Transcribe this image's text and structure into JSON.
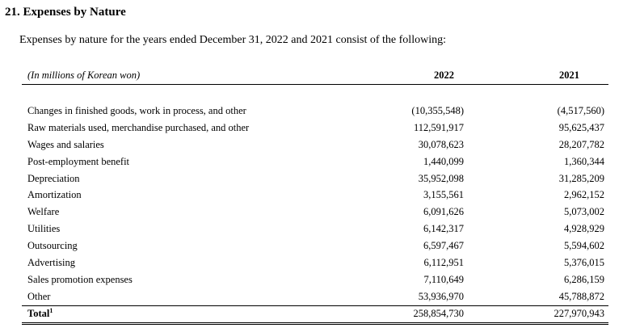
{
  "section": {
    "title": "21. Expenses by Nature",
    "intro": "Expenses by nature for the years ended December 31, 2022 and 2021 consist of the following:"
  },
  "table": {
    "unit_label": "(In millions of Korean won)",
    "col_2022": "2022",
    "col_2021": "2021",
    "rows": [
      {
        "label": "Changes in finished goods, work in process, and other",
        "v2022": "(10,355,548)",
        "v2021": "(4,517,560)"
      },
      {
        "label": "Raw materials used, merchandise purchased, and other",
        "v2022": "112,591,917",
        "v2021": "95,625,437"
      },
      {
        "label": "Wages and salaries",
        "v2022": "30,078,623",
        "v2021": "28,207,782"
      },
      {
        "label": "Post-employment benefit",
        "v2022": "1,440,099",
        "v2021": "1,360,344"
      },
      {
        "label": "Depreciation",
        "v2022": "35,952,098",
        "v2021": "31,285,209"
      },
      {
        "label": "Amortization",
        "v2022": "3,155,561",
        "v2021": "2,962,152"
      },
      {
        "label": "Welfare",
        "v2022": "6,091,626",
        "v2021": "5,073,002"
      },
      {
        "label": "Utilities",
        "v2022": "6,142,317",
        "v2021": "4,928,929"
      },
      {
        "label": "Outsourcing",
        "v2022": "6,597,467",
        "v2021": "5,594,602"
      },
      {
        "label": "Advertising",
        "v2022": "6,112,951",
        "v2021": "5,376,015"
      },
      {
        "label": "Sales promotion expenses",
        "v2022": "7,110,649",
        "v2021": "6,286,159"
      },
      {
        "label": "Other",
        "v2022": "53,936,970",
        "v2021": "45,788,872"
      }
    ],
    "total": {
      "label": "Total",
      "footnote": "1",
      "v2022": "258,854,730",
      "v2021": "227,970,943"
    }
  }
}
